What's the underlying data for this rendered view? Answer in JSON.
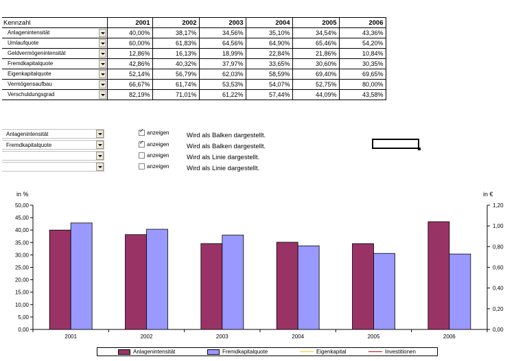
{
  "table": {
    "header": {
      "label": "Kennzahl",
      "years": [
        "2001",
        "2002",
        "2003",
        "2004",
        "2005",
        "2006"
      ]
    },
    "rows": [
      {
        "name": "Anlagenintensität",
        "values": [
          "40,00%",
          "38,17%",
          "34,56%",
          "35,10%",
          "34,54%",
          "43,36%"
        ]
      },
      {
        "name": "Umlaufquote",
        "values": [
          "60,00%",
          "61,83%",
          "64,56%",
          "64,90%",
          "65,46%",
          "54,20%"
        ]
      },
      {
        "name": "Geldvermögenintensität",
        "values": [
          "12,86%",
          "16,13%",
          "18,99%",
          "22,84%",
          "21,86%",
          "10,84%"
        ]
      },
      {
        "name": "Fremdkapitalquote",
        "values": [
          "42,86%",
          "40,32%",
          "37,97%",
          "33,65%",
          "30,60%",
          "30,35%"
        ]
      },
      {
        "name": "Eigenkapitalquote",
        "values": [
          "52,14%",
          "56,79%",
          "62,03%",
          "58,59%",
          "69,40%",
          "69,65%"
        ]
      },
      {
        "name": "Vermögensaufbau",
        "values": [
          "66,67%",
          "61,74%",
          "53,53%",
          "54,07%",
          "52,75%",
          "80,00%"
        ]
      },
      {
        "name": "Verschuldungsgrad",
        "values": [
          "82,19%",
          "71,01%",
          "61,22%",
          "57,44%",
          "44,09%",
          "43,58%"
        ]
      }
    ]
  },
  "selectors": [
    {
      "label": "Anlagenintensität",
      "checked": true,
      "check_label": "anzeigen",
      "desc": "Wird als Balken dargestellt."
    },
    {
      "label": "Fremdkapitalquote",
      "checked": true,
      "check_label": "anzeigen",
      "desc": "Wird als Balken dargestellt."
    },
    {
      "label": "",
      "checked": false,
      "check_label": "anzeigen",
      "desc": "Wird als Linie dargestellt."
    },
    {
      "label": "",
      "checked": false,
      "check_label": "anzeigen",
      "desc": "Wird als Linie dargestellt."
    }
  ],
  "chart_data": {
    "type": "bar",
    "categories": [
      "2001",
      "2002",
      "2003",
      "2004",
      "2005",
      "2006"
    ],
    "series": [
      {
        "name": "Anlagenintensität",
        "values": [
          40.0,
          38.17,
          34.56,
          35.1,
          34.54,
          43.36
        ],
        "color": "#993366"
      },
      {
        "name": "Fremdkapitalquote",
        "values": [
          42.86,
          40.32,
          37.97,
          33.65,
          30.6,
          30.35
        ],
        "color": "#9999ff"
      }
    ],
    "ylabel": "in %",
    "y2label": "in €",
    "ylim": [
      0,
      50
    ],
    "yticks": [
      "0,00",
      "5,00",
      "10,00",
      "15,00",
      "20,00",
      "25,00",
      "30,00",
      "35,00",
      "40,00",
      "45,00",
      "50,00"
    ],
    "y2lim": [
      0,
      1.2
    ],
    "y2ticks": [
      "0,00",
      "0,20",
      "0,40",
      "0,60",
      "0,80",
      "1,00",
      "1,20"
    ],
    "legend": [
      {
        "name": "Anlagenintensität",
        "kind": "bar",
        "color": "#993366"
      },
      {
        "name": "Fremdkapitalquote",
        "kind": "bar",
        "color": "#9999ff"
      },
      {
        "name": "Eigenkapital",
        "kind": "line",
        "color": "#ffcc00"
      },
      {
        "name": "Investitionen",
        "kind": "line",
        "color": "#cc0000"
      }
    ],
    "legend_position": "bottom",
    "grid": false
  }
}
